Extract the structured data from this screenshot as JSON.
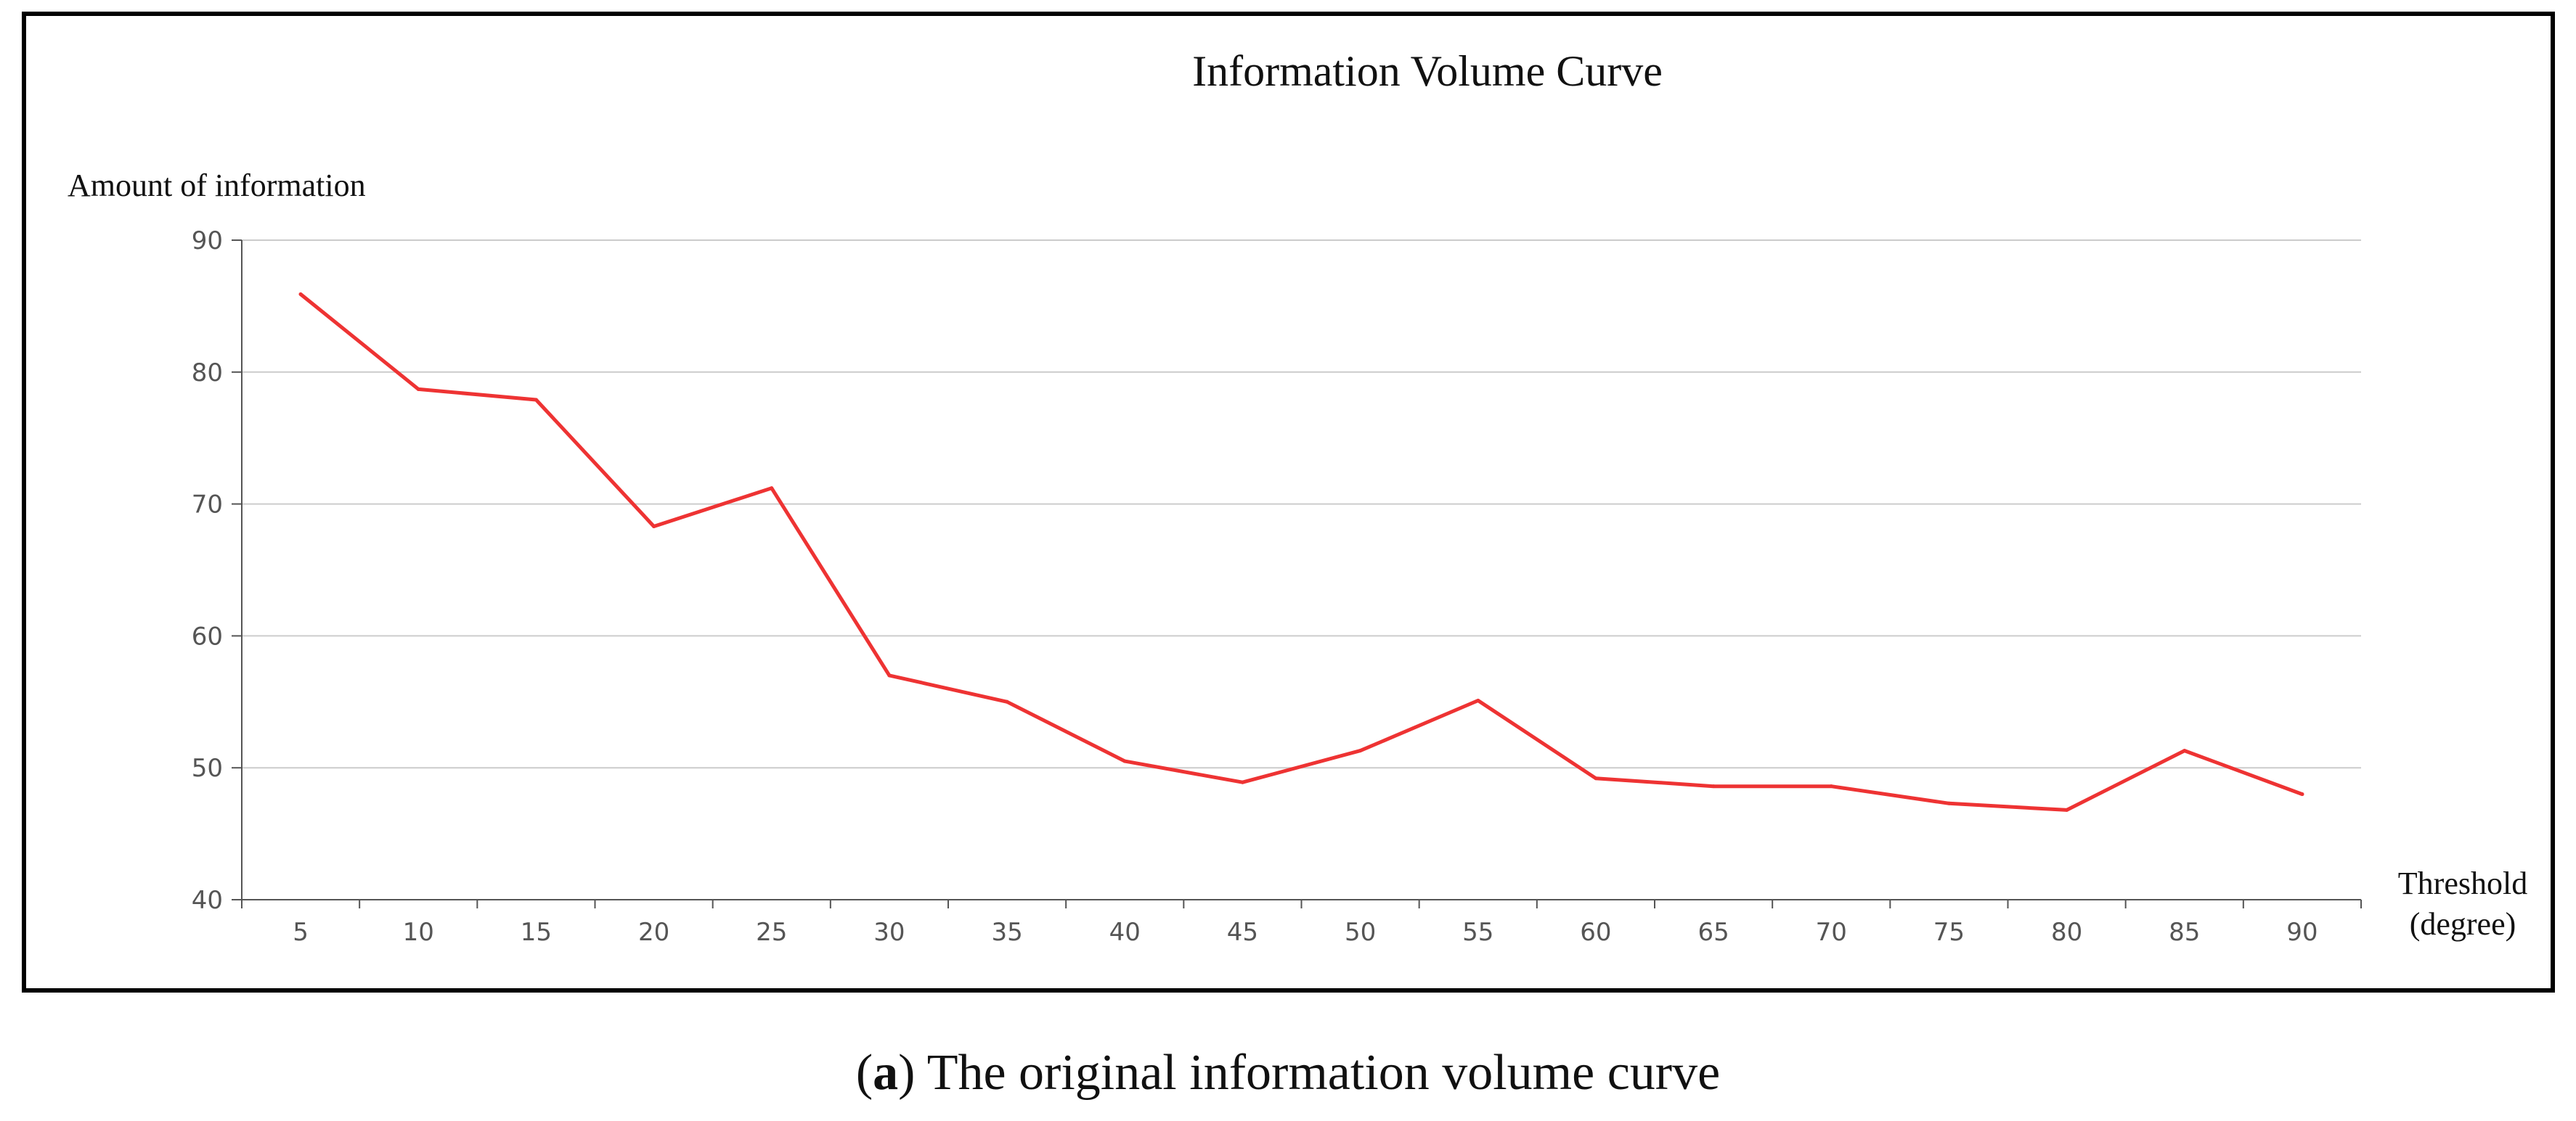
{
  "chart_data": {
    "type": "line",
    "title": "Information Volume Curve",
    "ylabel": "Amount of information",
    "xlabel_lines": [
      "Threshold",
      "(degree)"
    ],
    "x": [
      5,
      10,
      15,
      20,
      25,
      30,
      35,
      40,
      45,
      50,
      55,
      60,
      65,
      70,
      75,
      80,
      85,
      90
    ],
    "series": [
      {
        "name": "Amount of information",
        "color": "#ee3333",
        "values": [
          85.9,
          78.7,
          77.9,
          68.3,
          71.2,
          57.0,
          55.0,
          50.5,
          48.9,
          51.3,
          55.1,
          49.2,
          48.6,
          48.6,
          47.3,
          46.8,
          51.3,
          48.0
        ]
      }
    ],
    "ylim": [
      40,
      90
    ],
    "yticks": [
      40,
      50,
      60,
      70,
      80,
      90
    ],
    "grid": true
  },
  "caption": {
    "open_paren": "(",
    "label": "a",
    "text": ") The original information volume curve"
  }
}
